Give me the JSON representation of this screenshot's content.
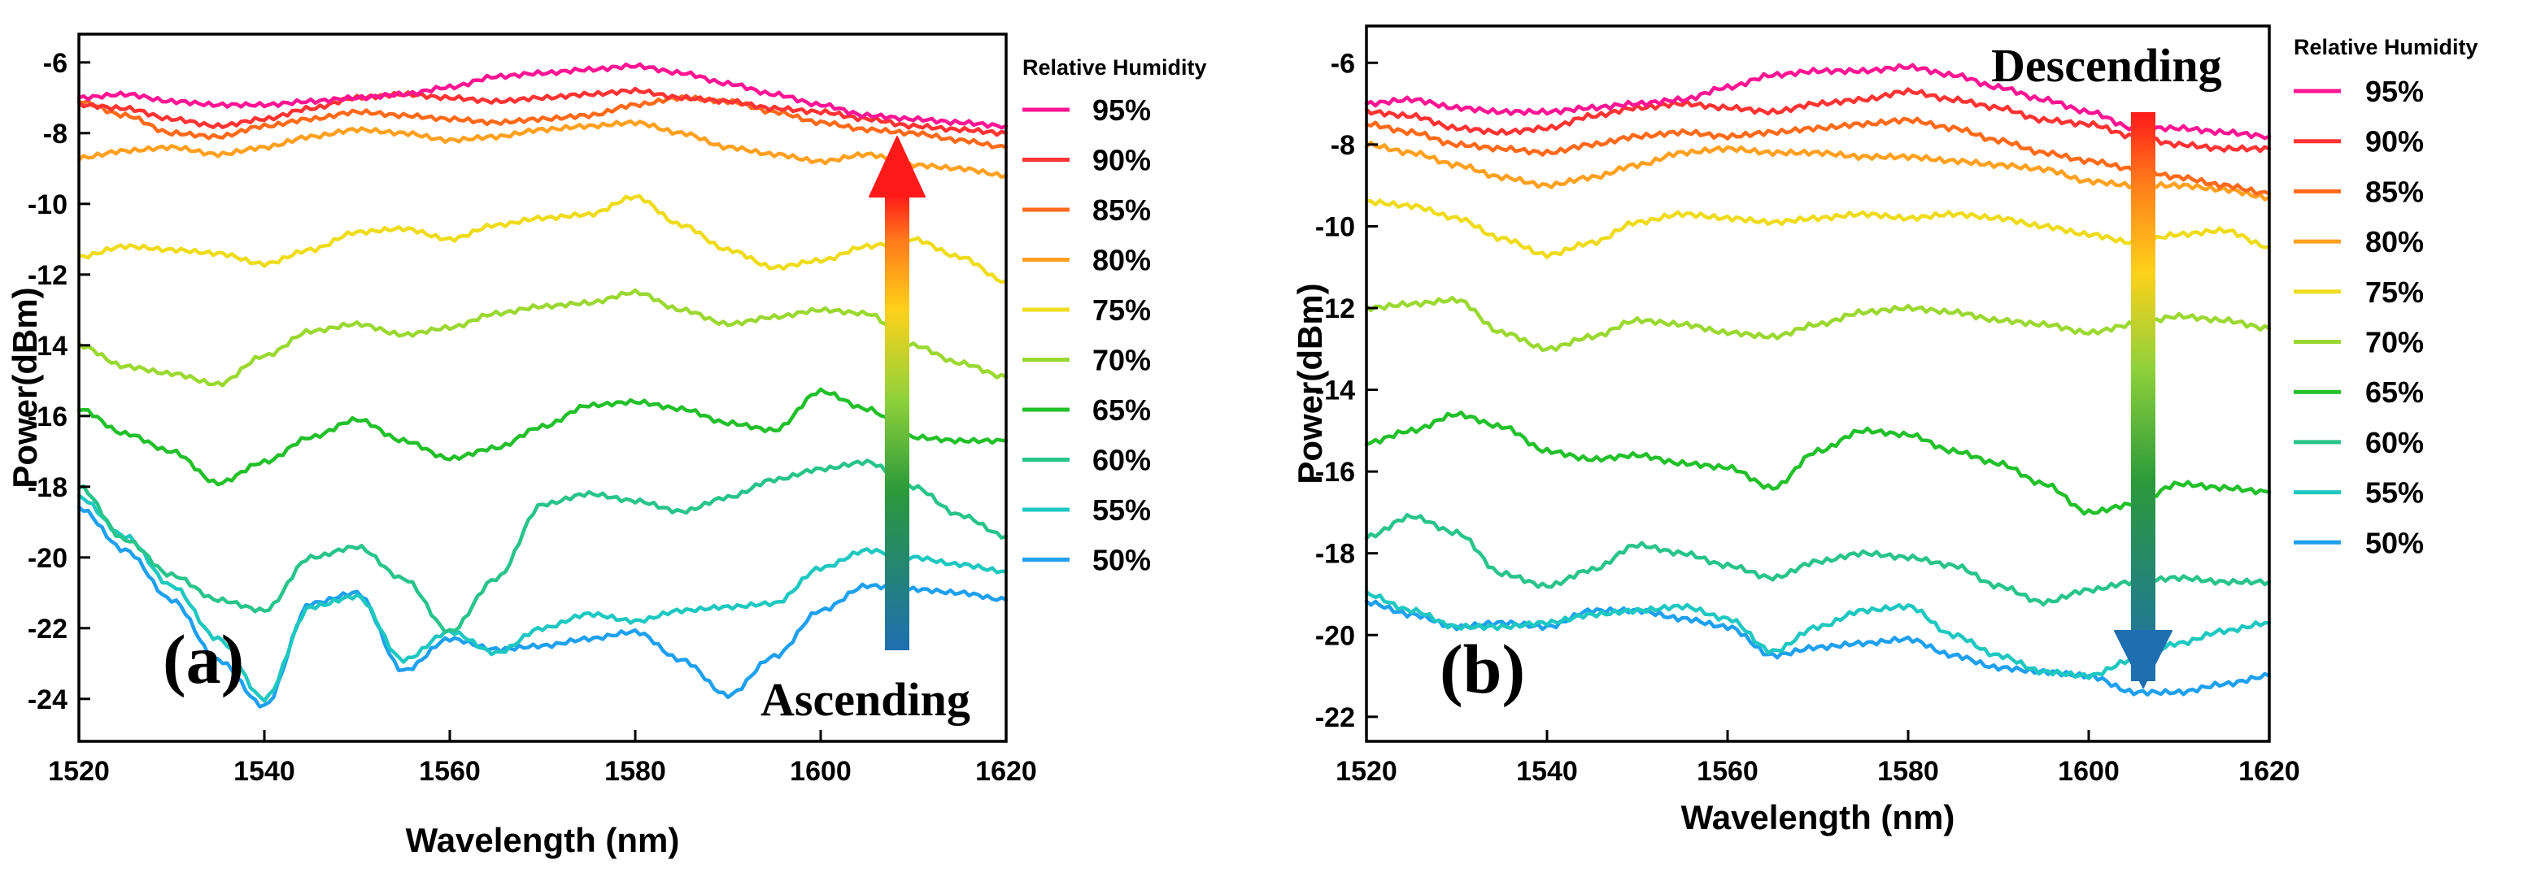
{
  "chart_data": [
    {
      "type": "line",
      "panel_label": "(a)",
      "xlabel": "Wavelength (nm)",
      "ylabel": "Power(dBm)",
      "xlim": [
        1520,
        1620
      ],
      "ylim": [
        -25.2,
        -5.2
      ],
      "xticks": [
        1520,
        1540,
        1560,
        1580,
        1600,
        1620
      ],
      "yticks": [
        -24,
        -22,
        -20,
        -18,
        -16,
        -14,
        -12,
        -10,
        -8,
        -6
      ],
      "legend_title": "Relative Humidity",
      "arrow_direction": "up",
      "annotation": "Ascending",
      "x": [
        1520,
        1525,
        1530,
        1535,
        1540,
        1545,
        1550,
        1555,
        1560,
        1565,
        1570,
        1575,
        1580,
        1585,
        1590,
        1595,
        1600,
        1605,
        1610,
        1615,
        1620
      ],
      "series": [
        {
          "name": "95%",
          "color": "#ff1493",
          "values": [
            -7.0,
            -6.9,
            -7.1,
            -7.2,
            -7.2,
            -7.1,
            -7.0,
            -6.9,
            -6.7,
            -6.4,
            -6.3,
            -6.2,
            -6.1,
            -6.3,
            -6.6,
            -6.9,
            -7.2,
            -7.5,
            -7.6,
            -7.7,
            -7.8
          ]
        },
        {
          "name": "90%",
          "color": "#ff3333",
          "values": [
            -7.2,
            -7.3,
            -7.6,
            -7.8,
            -7.6,
            -7.3,
            -7.0,
            -6.9,
            -7.0,
            -7.1,
            -7.0,
            -6.9,
            -6.8,
            -7.0,
            -7.1,
            -7.3,
            -7.4,
            -7.6,
            -7.8,
            -7.9,
            -8.0
          ]
        },
        {
          "name": "85%",
          "color": "#ff6a1a",
          "values": [
            -7.1,
            -7.5,
            -8.0,
            -8.1,
            -7.8,
            -7.6,
            -7.4,
            -7.5,
            -7.6,
            -7.7,
            -7.6,
            -7.5,
            -7.2,
            -7.0,
            -7.1,
            -7.4,
            -7.7,
            -7.9,
            -8.0,
            -8.2,
            -8.4
          ]
        },
        {
          "name": "80%",
          "color": "#ffa020",
          "values": [
            -8.7,
            -8.5,
            -8.4,
            -8.6,
            -8.4,
            -8.1,
            -7.9,
            -8.0,
            -8.2,
            -8.1,
            -7.9,
            -7.8,
            -7.7,
            -8.0,
            -8.4,
            -8.6,
            -8.8,
            -8.6,
            -8.9,
            -9.0,
            -9.2
          ]
        },
        {
          "name": "75%",
          "color": "#eedc1c",
          "values": [
            -11.5,
            -11.2,
            -11.3,
            -11.4,
            -11.7,
            -11.3,
            -10.8,
            -10.7,
            -11.0,
            -10.6,
            -10.4,
            -10.3,
            -9.8,
            -10.6,
            -11.3,
            -11.8,
            -11.6,
            -11.2,
            -11.0,
            -11.5,
            -12.2
          ]
        },
        {
          "name": "70%",
          "color": "#9bd831",
          "values": [
            -14.0,
            -14.6,
            -14.8,
            -15.1,
            -14.3,
            -13.6,
            -13.4,
            -13.7,
            -13.5,
            -13.1,
            -12.9,
            -12.8,
            -12.5,
            -13.0,
            -13.4,
            -13.2,
            -13.0,
            -13.1,
            -14.0,
            -14.5,
            -14.9
          ]
        },
        {
          "name": "65%",
          "color": "#22c02a",
          "values": [
            -15.8,
            -16.5,
            -17.0,
            -17.9,
            -17.3,
            -16.6,
            -16.1,
            -16.7,
            -17.2,
            -16.9,
            -16.3,
            -15.7,
            -15.6,
            -15.8,
            -16.2,
            -16.4,
            -15.3,
            -15.8,
            -16.6,
            -16.7,
            -16.7
          ]
        },
        {
          "name": "60%",
          "color": "#28c48a",
          "values": [
            -18.0,
            -19.5,
            -20.5,
            -21.2,
            -21.5,
            -20.0,
            -19.7,
            -20.6,
            -22.1,
            -20.6,
            -18.5,
            -18.2,
            -18.4,
            -18.7,
            -18.3,
            -17.8,
            -17.5,
            -17.3,
            -18.0,
            -18.8,
            -19.4
          ]
        },
        {
          "name": "55%",
          "color": "#1ec8c0",
          "values": [
            -18.3,
            -19.4,
            -20.8,
            -22.3,
            -24.0,
            -21.4,
            -21.1,
            -22.9,
            -22.1,
            -22.7,
            -22.0,
            -21.6,
            -21.8,
            -21.5,
            -21.4,
            -21.3,
            -20.3,
            -19.8,
            -20.0,
            -20.2,
            -20.4
          ]
        },
        {
          "name": "50%",
          "color": "#1ea0ee",
          "values": [
            -18.6,
            -19.8,
            -21.2,
            -22.9,
            -24.2,
            -21.3,
            -21.0,
            -23.2,
            -22.3,
            -22.6,
            -22.5,
            -22.3,
            -22.1,
            -22.9,
            -23.9,
            -22.8,
            -21.5,
            -20.8,
            -20.9,
            -21.0,
            -21.2
          ]
        }
      ]
    },
    {
      "type": "line",
      "panel_label": "(b)",
      "xlabel": "Wavelength (nm)",
      "ylabel": "Power(dBm)",
      "xlim": [
        1520,
        1620
      ],
      "ylim": [
        -22.6,
        -5.1
      ],
      "xticks": [
        1520,
        1540,
        1560,
        1580,
        1600,
        1620
      ],
      "yticks": [
        -22,
        -20,
        -18,
        -16,
        -14,
        -12,
        -10,
        -8,
        -6
      ],
      "legend_title": "Relative Humidity",
      "arrow_direction": "down",
      "annotation": "Descending",
      "x": [
        1520,
        1525,
        1530,
        1535,
        1540,
        1545,
        1550,
        1555,
        1560,
        1565,
        1570,
        1575,
        1580,
        1585,
        1590,
        1595,
        1600,
        1605,
        1610,
        1615,
        1620
      ],
      "series": [
        {
          "name": "95%",
          "color": "#ff1493",
          "values": [
            -7.0,
            -6.9,
            -7.1,
            -7.2,
            -7.2,
            -7.1,
            -7.0,
            -6.9,
            -6.6,
            -6.3,
            -6.2,
            -6.2,
            -6.1,
            -6.3,
            -6.6,
            -6.9,
            -7.2,
            -7.6,
            -7.6,
            -7.7,
            -7.8
          ]
        },
        {
          "name": "90%",
          "color": "#ff3333",
          "values": [
            -7.2,
            -7.3,
            -7.6,
            -7.7,
            -7.6,
            -7.3,
            -7.1,
            -7.0,
            -7.1,
            -7.2,
            -7.0,
            -6.9,
            -6.7,
            -6.9,
            -7.1,
            -7.4,
            -7.5,
            -7.8,
            -8.0,
            -8.1,
            -8.1
          ]
        },
        {
          "name": "85%",
          "color": "#ff6a1a",
          "values": [
            -7.5,
            -7.7,
            -8.0,
            -8.1,
            -8.2,
            -8.0,
            -7.8,
            -7.7,
            -7.8,
            -7.7,
            -7.6,
            -7.5,
            -7.4,
            -7.6,
            -7.9,
            -8.2,
            -8.4,
            -8.6,
            -8.8,
            -9.0,
            -9.2
          ]
        },
        {
          "name": "80%",
          "color": "#ffa020",
          "values": [
            -8.0,
            -8.2,
            -8.5,
            -8.8,
            -9.0,
            -8.8,
            -8.5,
            -8.2,
            -8.1,
            -8.2,
            -8.2,
            -8.3,
            -8.3,
            -8.4,
            -8.5,
            -8.6,
            -8.9,
            -9.0,
            -9.0,
            -9.1,
            -9.3
          ]
        },
        {
          "name": "75%",
          "color": "#eedc1c",
          "values": [
            -9.4,
            -9.5,
            -9.8,
            -10.3,
            -10.7,
            -10.4,
            -9.9,
            -9.7,
            -9.8,
            -9.9,
            -9.8,
            -9.7,
            -9.8,
            -9.7,
            -9.8,
            -10.0,
            -10.2,
            -10.4,
            -10.2,
            -10.1,
            -10.5
          ]
        },
        {
          "name": "70%",
          "color": "#9bd831",
          "values": [
            -12.0,
            -11.9,
            -11.8,
            -12.6,
            -13.0,
            -12.7,
            -12.3,
            -12.4,
            -12.6,
            -12.7,
            -12.4,
            -12.1,
            -12.0,
            -12.1,
            -12.3,
            -12.4,
            -12.6,
            -12.4,
            -12.2,
            -12.3,
            -12.5
          ]
        },
        {
          "name": "65%",
          "color": "#22c02a",
          "values": [
            -15.3,
            -15.0,
            -14.6,
            -14.9,
            -15.5,
            -15.7,
            -15.6,
            -15.8,
            -15.9,
            -16.4,
            -15.5,
            -15.0,
            -15.1,
            -15.5,
            -15.8,
            -16.3,
            -17.0,
            -16.8,
            -16.3,
            -16.4,
            -16.5
          ]
        },
        {
          "name": "60%",
          "color": "#28c48a",
          "values": [
            -17.6,
            -17.1,
            -17.5,
            -18.5,
            -18.8,
            -18.4,
            -17.8,
            -18.0,
            -18.3,
            -18.6,
            -18.2,
            -18.0,
            -18.1,
            -18.3,
            -18.8,
            -19.2,
            -18.9,
            -18.7,
            -18.6,
            -18.7,
            -18.7
          ]
        },
        {
          "name": "55%",
          "color": "#1ec8c0",
          "values": [
            -19.0,
            -19.4,
            -19.8,
            -19.8,
            -19.7,
            -19.5,
            -19.4,
            -19.3,
            -19.6,
            -20.4,
            -19.8,
            -19.4,
            -19.3,
            -20.0,
            -20.5,
            -20.9,
            -21.0,
            -20.6,
            -20.2,
            -19.9,
            -19.7
          ]
        },
        {
          "name": "50%",
          "color": "#1ea0ee",
          "values": [
            -19.2,
            -19.5,
            -19.8,
            -19.7,
            -19.8,
            -19.4,
            -19.4,
            -19.6,
            -19.8,
            -20.5,
            -20.3,
            -20.2,
            -20.1,
            -20.5,
            -20.8,
            -20.9,
            -21.0,
            -21.4,
            -21.4,
            -21.2,
            -21.0
          ]
        }
      ]
    }
  ]
}
